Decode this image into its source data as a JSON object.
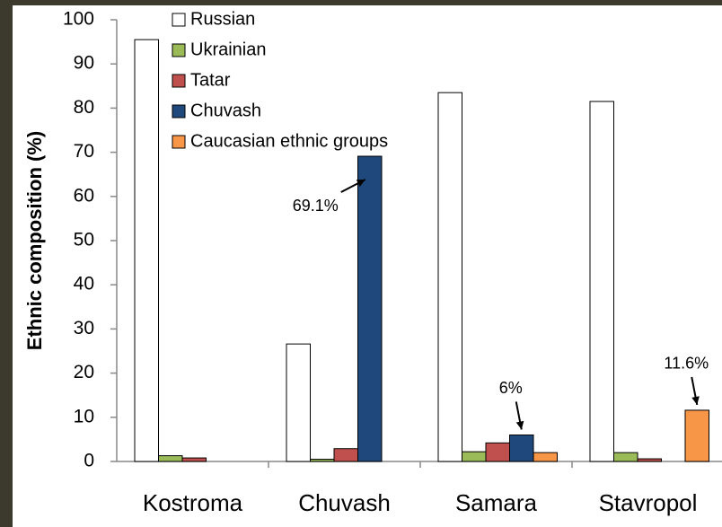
{
  "chart_data": {
    "type": "bar",
    "y_label": "Ethnic composition (%)",
    "categories": [
      "Kostroma",
      "Chuvash",
      "Samara",
      "Stavropol"
    ],
    "series": [
      {
        "name": "Russian",
        "color": "#ffffff",
        "values": [
          95.5,
          26.6,
          83.5,
          81.5
        ]
      },
      {
        "name": "Ukrainian",
        "color": "#9bbb59",
        "values": [
          1.3,
          0.5,
          2.2,
          2
        ]
      },
      {
        "name": "Tatar",
        "color": "#c0504d",
        "values": [
          0.8,
          2.9,
          4.2,
          0.6
        ]
      },
      {
        "name": "Chuvash",
        "color": "#1f497d",
        "values": [
          null,
          69.1,
          6,
          null
        ],
        "value_labels": [
          null,
          "69.1%",
          "6%",
          null
        ]
      },
      {
        "name": "Caucasian ethnic groups",
        "color": "#f79646",
        "values": [
          null,
          null,
          2,
          11.6
        ],
        "value_labels": [
          null,
          null,
          null,
          "11.6%"
        ]
      }
    ],
    "ylim": [
      0,
      100
    ],
    "yticks": [
      0,
      10,
      20,
      30,
      40,
      50,
      60,
      70,
      80,
      90,
      100
    ]
  }
}
